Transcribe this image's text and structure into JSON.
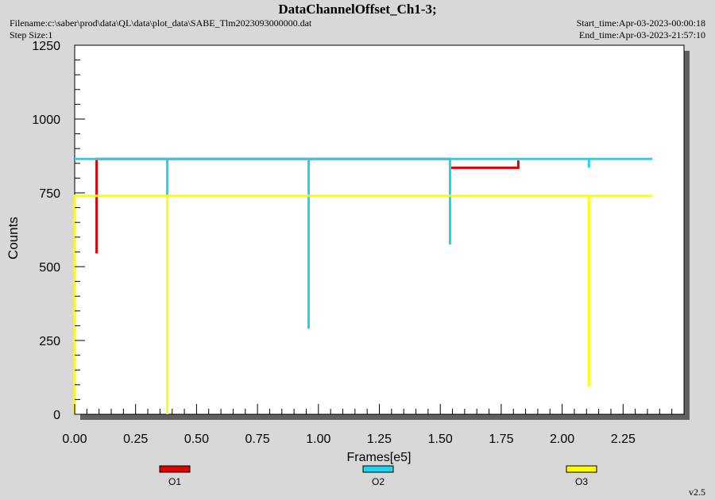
{
  "header": {
    "title": "DataChannelOffset_Ch1-3;",
    "filename": "Filename:c:\\saber\\prod\\data\\QL\\data\\plot_data\\SABE_Tlm2023093000000.dat",
    "step_size": "Step Size:1",
    "start_time": "Start_time:Apr-03-2023-00:00:18",
    "end_time": "End_time:Apr-03-2023-21:57:10"
  },
  "version": "v2.5",
  "chart_data": {
    "type": "line",
    "title": "DataChannelOffset_Ch1-3;",
    "xlabel": "Frames[e5]",
    "ylabel": "Counts",
    "xlim": [
      0,
      2.5
    ],
    "ylim": [
      0,
      1250
    ],
    "xticks": [
      "0.00",
      "0.25",
      "0.50",
      "0.75",
      "1.00",
      "1.25",
      "1.50",
      "1.75",
      "2.00",
      "2.25"
    ],
    "yticks": [
      "0",
      "250",
      "500",
      "750",
      "1000",
      "1250"
    ],
    "legend_position": "bottom",
    "series": [
      {
        "name": "O1",
        "color": "#e00000",
        "x": [
          0.09,
          0.09,
          0.09,
          0.09,
          1.54,
          1.54,
          1.82,
          1.82
        ],
        "y": [
          865,
          545,
          865,
          865,
          865,
          835,
          835,
          860
        ]
      },
      {
        "name": "O2",
        "color": "#22d3ee",
        "x": [
          0,
          0.38,
          0.38,
          0.38,
          0.96,
          0.96,
          0.96,
          1.54,
          1.54,
          1.54,
          2.11,
          2.11,
          2.11,
          2.37
        ],
        "y": [
          865,
          865,
          740,
          865,
          865,
          290,
          865,
          865,
          575,
          865,
          865,
          835,
          865,
          865
        ]
      },
      {
        "name": "O3",
        "color": "#ffff00",
        "x": [
          0,
          0,
          0,
          0.38,
          0.38,
          0.38,
          2.11,
          2.11,
          2.11,
          2.37
        ],
        "y": [
          0,
          740,
          740,
          740,
          0,
          740,
          740,
          95,
          740,
          740
        ]
      }
    ]
  }
}
